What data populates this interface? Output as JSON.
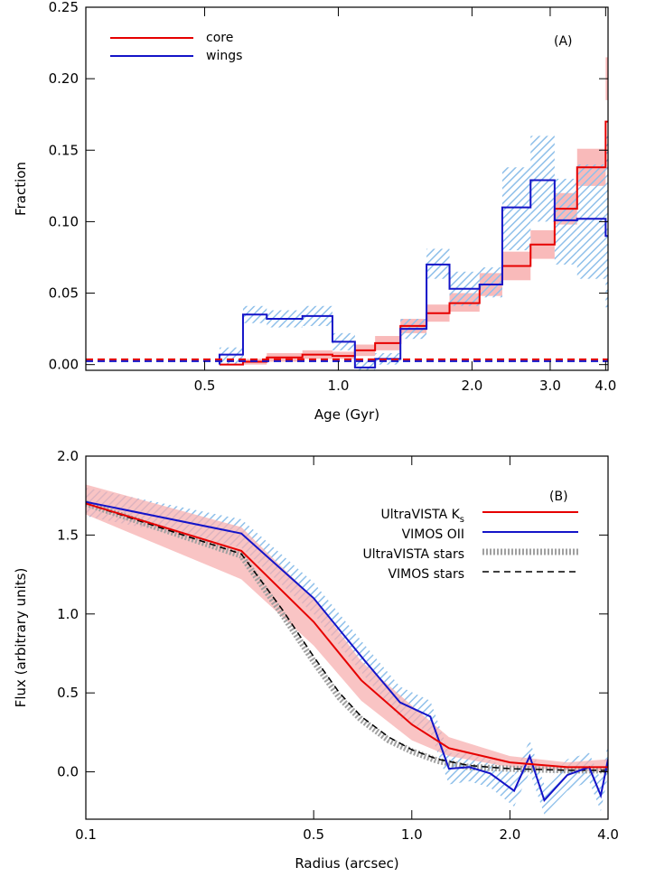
{
  "chart_data": [
    {
      "type": "line",
      "panel_label": "(A)",
      "xlabel": "Age (Gyr)",
      "ylabel": "Fraction",
      "x_scale": "log",
      "xlim": [
        0.27,
        4.05
      ],
      "ylim": [
        -0.004,
        0.25
      ],
      "x_ticks": [
        {
          "v": 0.5,
          "l": "0.5"
        },
        {
          "v": 1.0,
          "l": "1.0"
        },
        {
          "v": 2.0,
          "l": "2.0"
        },
        {
          "v": 3.0,
          "l": "3.0"
        },
        {
          "v": 4.0,
          "l": "4.0"
        }
      ],
      "y_ticks": [
        {
          "v": 0,
          "l": "0.00"
        },
        {
          "v": 0.05,
          "l": "0.05"
        },
        {
          "v": 0.1,
          "l": "0.10"
        },
        {
          "v": 0.15,
          "l": "0.15"
        },
        {
          "v": 0.2,
          "l": "0.20"
        },
        {
          "v": 0.25,
          "l": "0.25"
        }
      ],
      "bin_edges": [
        0.54,
        0.61,
        0.69,
        0.83,
        0.97,
        1.09,
        1.21,
        1.38,
        1.58,
        1.78,
        2.08,
        2.34,
        2.71,
        3.07,
        3.45,
        4.0
      ],
      "series": [
        {
          "name": "core",
          "color": "#e60000",
          "band_color": "#f7a3a3",
          "values": [
            0.0,
            0.002,
            0.005,
            0.007,
            0.006,
            0.01,
            0.015,
            0.027,
            0.036,
            0.043,
            0.056,
            0.069,
            0.084,
            0.109,
            0.138,
            0.17
          ],
          "band_low": [
            0.0,
            0.0,
            0.002,
            0.004,
            0.004,
            0.006,
            0.01,
            0.022,
            0.03,
            0.037,
            0.048,
            0.059,
            0.074,
            0.098,
            0.125,
            0.155
          ],
          "band_high": [
            0.0,
            0.004,
            0.008,
            0.01,
            0.009,
            0.014,
            0.02,
            0.032,
            0.042,
            0.05,
            0.064,
            0.079,
            0.094,
            0.12,
            0.151,
            0.185
          ]
        },
        {
          "name": "wings",
          "color": "#1414c8",
          "band_color": "#8fc0ea",
          "values": [
            0.007,
            0.035,
            0.032,
            0.034,
            0.016,
            -0.002,
            0.004,
            0.025,
            0.07,
            0.053,
            0.056,
            0.11,
            0.129,
            0.101,
            0.102,
            0.09
          ],
          "band_low": [
            0.0,
            0.029,
            0.026,
            0.027,
            0.01,
            -0.004,
            0.0,
            0.018,
            0.06,
            0.041,
            0.047,
            0.08,
            0.1,
            0.07,
            0.06,
            0.04
          ],
          "band_high": [
            0.012,
            0.041,
            0.038,
            0.041,
            0.022,
            0.004,
            0.008,
            0.032,
            0.081,
            0.065,
            0.068,
            0.138,
            0.16,
            0.13,
            0.14,
            0.15
          ]
        }
      ],
      "last_bin": {
        "core": 0.2,
        "core_low": 0.185,
        "core_high": 0.215,
        "wings": 0.121,
        "wings_low": 0.04,
        "wings_high": 0.16
      },
      "reference_lines": [
        {
          "y": 0.003,
          "color": "#e60000",
          "style": "dashed"
        },
        {
          "y": 0.003,
          "color": "#1414c8",
          "style": "dashed"
        }
      ],
      "legend": {
        "position": "top-left",
        "entries": [
          "core",
          "wings"
        ]
      }
    },
    {
      "type": "line",
      "panel_label": "(B)",
      "xlabel": "Radius (arcsec)",
      "ylabel": "Flux (arbitrary units)",
      "x_scale": "log",
      "xlim": [
        0.1,
        4.0
      ],
      "ylim": [
        -0.3,
        2.0
      ],
      "x_ticks": [
        {
          "v": 0.1,
          "l": "0.1"
        },
        {
          "v": 0.5,
          "l": "0.5"
        },
        {
          "v": 1.0,
          "l": "1.0"
        },
        {
          "v": 2.0,
          "l": "2.0"
        },
        {
          "v": 4.0,
          "l": "4.0"
        }
      ],
      "y_ticks": [
        {
          "v": 0.0,
          "l": "0.0"
        },
        {
          "v": 0.5,
          "l": "0.5"
        },
        {
          "v": 1.0,
          "l": "1.0"
        },
        {
          "v": 1.5,
          "l": "1.5"
        },
        {
          "v": 2.0,
          "l": "2.0"
        }
      ],
      "series": [
        {
          "name": "UltraVISTA K",
          "name_sub": "s",
          "color": "#e60000",
          "band_color": "#f7b0b0",
          "x": [
            0.1,
            0.3,
            0.5,
            0.7,
            1.0,
            1.3,
            2.0,
            3.0,
            4.0
          ],
          "y": [
            1.7,
            1.4,
            0.95,
            0.58,
            0.3,
            0.15,
            0.06,
            0.03,
            0.03
          ],
          "low": [
            1.63,
            1.22,
            0.8,
            0.45,
            0.2,
            0.1,
            0.03,
            0.01,
            0.0
          ],
          "high": [
            1.82,
            1.55,
            1.1,
            0.7,
            0.42,
            0.22,
            0.1,
            0.06,
            0.08
          ]
        },
        {
          "name": "VIMOS OII",
          "color": "#1414c8",
          "band_color": "#8fc0ea",
          "x": [
            0.1,
            0.3,
            0.5,
            0.72,
            0.92,
            1.14,
            1.3,
            1.5,
            1.74,
            2.06,
            2.3,
            2.55,
            3.0,
            3.5,
            3.8,
            4.0
          ],
          "y": [
            1.71,
            1.51,
            1.1,
            0.7,
            0.44,
            0.35,
            0.02,
            0.03,
            -0.01,
            -0.12,
            0.1,
            -0.18,
            -0.02,
            0.03,
            -0.15,
            0.08
          ],
          "low": [
            1.62,
            1.42,
            1.0,
            0.6,
            0.34,
            0.25,
            -0.08,
            -0.06,
            -0.1,
            -0.22,
            0.0,
            -0.27,
            -0.12,
            -0.06,
            -0.25,
            -0.02
          ],
          "high": [
            1.8,
            1.6,
            1.2,
            0.8,
            0.54,
            0.45,
            0.12,
            0.12,
            0.08,
            -0.02,
            0.2,
            -0.08,
            0.08,
            0.12,
            -0.05,
            0.18
          ]
        },
        {
          "name": "UltraVISTA stars",
          "color": "#a0a0a0",
          "style": "dotted-thick",
          "x": [
            0.1,
            0.3,
            0.4,
            0.5,
            0.6,
            0.7,
            0.85,
            1.0,
            1.2,
            1.5,
            2.0,
            3.0,
            4.0
          ],
          "y": [
            1.7,
            1.37,
            1.0,
            0.7,
            0.47,
            0.33,
            0.2,
            0.13,
            0.07,
            0.03,
            0.02,
            0.01,
            0.01
          ]
        },
        {
          "name": "VIMOS stars",
          "color": "#000000",
          "style": "dashed",
          "x": [
            0.1,
            0.3,
            0.4,
            0.5,
            0.6,
            0.7,
            0.85,
            1.0,
            1.2,
            1.5,
            2.0,
            3.0,
            4.0
          ],
          "y": [
            1.7,
            1.38,
            1.03,
            0.73,
            0.5,
            0.35,
            0.22,
            0.14,
            0.08,
            0.04,
            0.02,
            0.01,
            0.01
          ]
        }
      ],
      "legend": {
        "position": "top-right",
        "entries": [
          "UltraVISTA Ks",
          "VIMOS OII",
          "UltraVISTA stars",
          "VIMOS stars"
        ]
      }
    }
  ]
}
